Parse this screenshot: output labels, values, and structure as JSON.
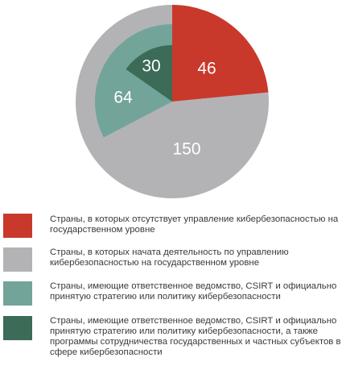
{
  "chart_data": {
    "type": "pie",
    "title": "",
    "slices": [
      {
        "label": "Страны, в которых отсутствует управление кибербезопасностью на государственном уровне",
        "value": 46,
        "display": "46",
        "color": "#c8392b"
      },
      {
        "label": "Страны, в которых начата деятельность по управлению кибербезопасностью на государственном уровне",
        "value": 150,
        "display": "150",
        "color": "#b3b3b6"
      },
      {
        "label": "Страны, имеющие ответственное ведомство, CSIRT и официально принятую стратегию или политику кибербезопасности",
        "value": 64,
        "display": "64",
        "color": "#72a49a"
      },
      {
        "label": "Страны, имеющие ответственное ведомство, CSIRT и официально принятую стратегию или политику кибербезопасности, а также программы сотрудничества государственных и частных субъектов в сфере кибербезопасности",
        "value": 30,
        "display": "30",
        "color": "#3c6b58"
      }
    ],
    "nesting": "The 64 and 30 segments are drawn inside the grey segment as concentric sub-wedges (30 ⊂ 64 ⊂ 150)",
    "value_label_color": "#ffffff"
  },
  "legend": {
    "items": [
      {
        "text": "Страны, в которых отсутствует управление кибербезопасностью на государственном уровне",
        "color": "#c8392b"
      },
      {
        "text": "Страны, в которых начата деятельность по управлению кибербезопасностью на государственном уровне",
        "color": "#b3b3b6"
      },
      {
        "text": "Страны, имеющие ответственное ведомство, CSIRT и официально принятую стратегию или политику кибербезопасности",
        "color": "#72a49a"
      },
      {
        "text": "Страны, имеющие ответственное ведомство, CSIRT и официально принятую стратегию или политику кибербезопасности, а также программы сотрудничества государственных и частных субъектов в сфере кибербезопасности",
        "color": "#3c6b58"
      }
    ]
  }
}
